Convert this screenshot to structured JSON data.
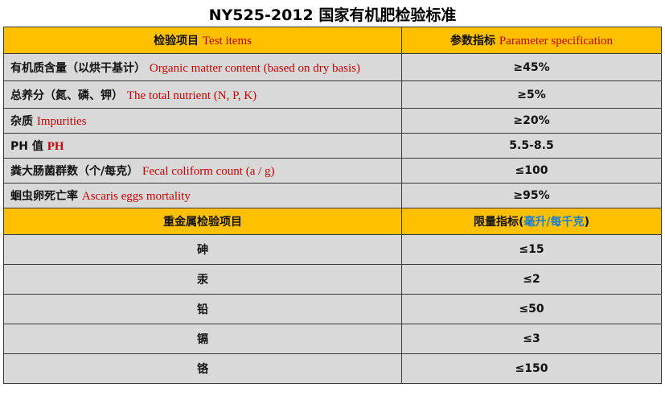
{
  "title": "NY525-2012 国家有机肥检验标准",
  "header1": {
    "col1_cn": "检验项目",
    "col1_en": "Test items",
    "col2_cn": "参数指标",
    "col2_en": "Parameter specification"
  },
  "items": [
    {
      "cn": "有机质含量（以烘干基计）",
      "en": "Organic matter content (based on dry basis)",
      "value": "≥45%"
    },
    {
      "cn": "总养分（氮、磷、钾）",
      "en": "The total nutrient (N, P, K)",
      "value": "≥5%"
    },
    {
      "cn": "杂质",
      "en": "Impurities",
      "value": "≥20%"
    },
    {
      "cn": "PH 值",
      "en": "PH",
      "value": "5.5-8.5"
    },
    {
      "cn": "粪大肠菌群数（个/每克）",
      "en": "Fecal coliform count (a / g)",
      "value": "≤100"
    },
    {
      "cn": "蛔虫卵死亡率",
      "en": "Ascaris eggs mortality",
      "value": "≥95%"
    }
  ],
  "header2": {
    "col1": "重金属检验项目",
    "col2_prefix": "限量指标(",
    "col2_unit": "毫升/每千克",
    "col2_suffix": ")"
  },
  "metals": [
    {
      "name": "砷",
      "value": "≤15"
    },
    {
      "name": "汞",
      "value": "≤2"
    },
    {
      "name": "铅",
      "value": "≤50"
    },
    {
      "name": "镉",
      "value": "≤3"
    },
    {
      "name": "铬",
      "value": "≤150"
    }
  ],
  "colors": {
    "header_bg": "#ffc000",
    "row_bg": "#d9d9d9",
    "english_text": "#c00000",
    "unit_text": "#1b7fd1"
  }
}
